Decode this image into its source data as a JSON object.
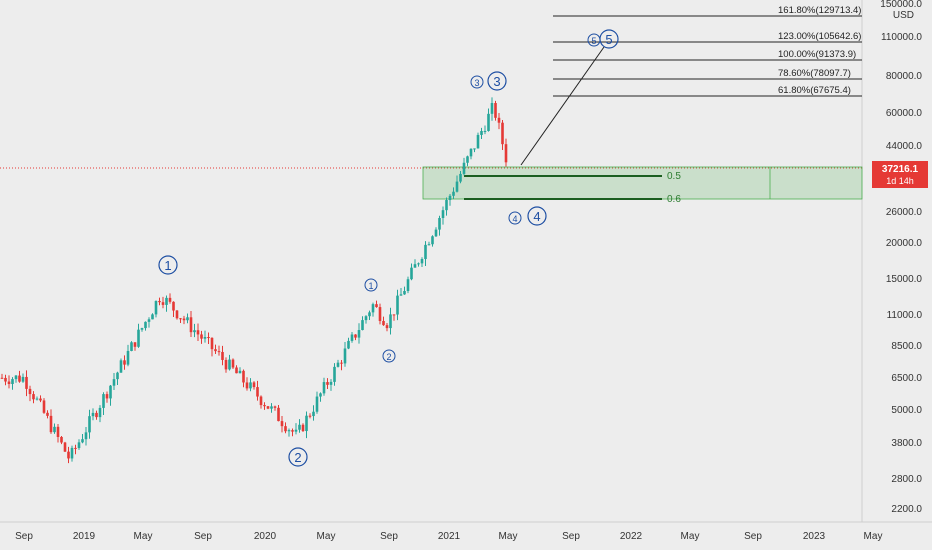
{
  "chart_data": {
    "type": "candlestick",
    "symbol_currency": "USD",
    "scale": "log",
    "last_price": "37216.1",
    "countdown": "1d 14h",
    "x_ticks": [
      "Sep",
      "2019",
      "May",
      "Sep",
      "2020",
      "May",
      "Sep",
      "2021",
      "May",
      "Sep",
      "2022",
      "May",
      "Sep",
      "2023",
      "May"
    ],
    "y_ticks": [
      "150000.0",
      "110000.0",
      "80000.0",
      "60000.0",
      "44000.0",
      "26000.0",
      "20000.0",
      "15000.0",
      "11000.0",
      "8500.0",
      "6500.0",
      "5000.0",
      "3800.0",
      "2800.0",
      "2200.0"
    ],
    "fib_levels": [
      "161.80%(129713.4)",
      "123.00%(105642.6)",
      "100.00%(91373.9)",
      "78.60%(78097.7)",
      "61.80%(67675.4)"
    ],
    "zone_labels": [
      "0.5",
      "0.6"
    ],
    "wave_labels": [
      "1",
      "2",
      "1",
      "2",
      "3",
      "3",
      "4",
      "4",
      "5",
      "5"
    ],
    "colors": {
      "up": "#26a69a",
      "down": "#e53935",
      "wave": "#1e4fa3",
      "zone": "rgba(76,175,80,0.22)",
      "price_line": "#e53935"
    },
    "key_points": [
      {
        "date": "2018-09",
        "price": 6500
      },
      {
        "date": "2018-12",
        "price": 3300
      },
      {
        "date": "2019-06",
        "price": 13000
      },
      {
        "date": "2020-03",
        "price": 4000
      },
      {
        "date": "2020-08",
        "price": 12000
      },
      {
        "date": "2020-09",
        "price": 10300
      },
      {
        "date": "2021-04",
        "price": 63000
      },
      {
        "date": "2021-05",
        "price": 37216
      }
    ]
  }
}
